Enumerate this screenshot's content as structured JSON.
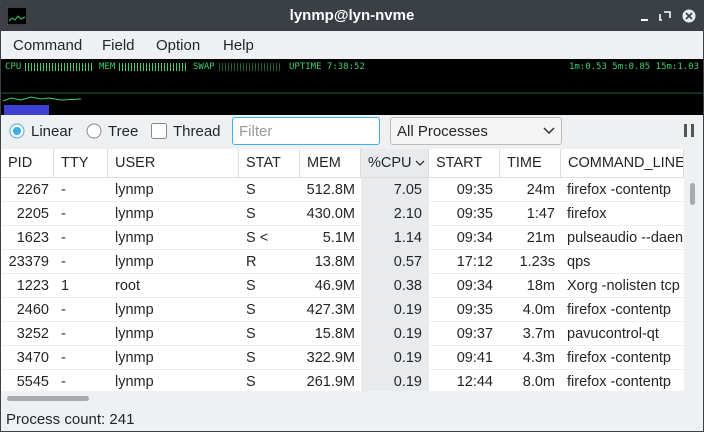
{
  "window": {
    "title": "lynmp@lyn-nvme"
  },
  "menu": [
    "Command",
    "Field",
    "Option",
    "Help"
  ],
  "monitor": {
    "cpu_label": "CPU",
    "mem_label": "MEM",
    "swap_label": "SWAP",
    "uptime": "UPTIME 7:38:52",
    "load": "1m:0.53 5m:0.85 15m:1.03"
  },
  "toolbar": {
    "view_modes": [
      "Linear",
      "Tree"
    ],
    "thread": "Thread",
    "filter_placeholder": "Filter",
    "process_filter": "All Processes"
  },
  "table": {
    "columns": [
      "PID",
      "TTY",
      "USER",
      "STAT",
      "MEM",
      "%CPU",
      "START",
      "TIME",
      "COMMAND_LINE"
    ],
    "rows": [
      [
        "2267",
        "-",
        "lynmp",
        "S",
        "512.8M",
        "7.05",
        "09:35",
        "24m",
        "firefox -contentp"
      ],
      [
        "2205",
        "-",
        "lynmp",
        "S",
        "430.0M",
        "2.10",
        "09:35",
        "1:47",
        "firefox"
      ],
      [
        "1623",
        "-",
        "lynmp",
        "S <",
        "5.1M",
        "1.14",
        "09:34",
        "21m",
        "pulseaudio --daen"
      ],
      [
        "23379",
        "-",
        "lynmp",
        "R",
        "13.8M",
        "0.57",
        "17:12",
        "1.23s",
        "qps"
      ],
      [
        "1223",
        "1",
        "root",
        "S",
        "46.9M",
        "0.38",
        "09:34",
        "18m",
        "Xorg -nolisten tcp"
      ],
      [
        "2460",
        "-",
        "lynmp",
        "S",
        "427.3M",
        "0.19",
        "09:35",
        "4.0m",
        "firefox -contentp"
      ],
      [
        "3252",
        "-",
        "lynmp",
        "S",
        "15.8M",
        "0.19",
        "09:37",
        "3.7m",
        "pavucontrol-qt"
      ],
      [
        "3470",
        "-",
        "lynmp",
        "S",
        "322.9M",
        "0.19",
        "09:41",
        "4.3m",
        "firefox -contentp"
      ],
      [
        "5545",
        "-",
        "lynmp",
        "S",
        "261.9M",
        "0.19",
        "12:44",
        "8.0m",
        "firefox -contentp"
      ]
    ]
  },
  "status": "Process count: 241"
}
